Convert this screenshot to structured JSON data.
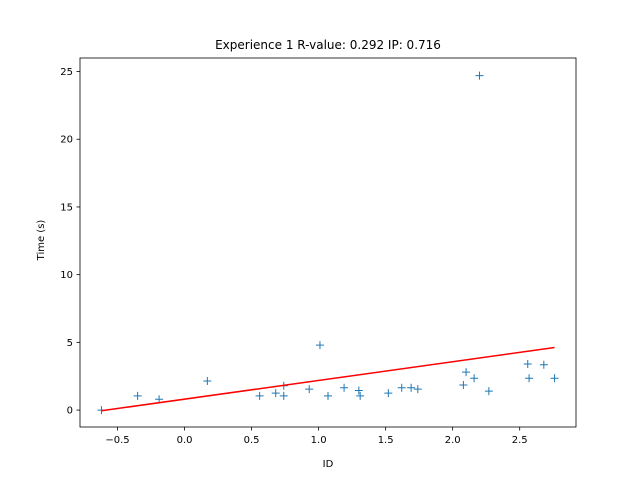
{
  "chart_data": {
    "type": "scatter",
    "title": "Experience 1 R-value: 0.292 IP: 0.716",
    "xlabel": "ID",
    "ylabel": "Time (s)",
    "xlim": [
      -0.78,
      2.92
    ],
    "ylim": [
      -1.25,
      26.0
    ],
    "xticks": [
      -0.5,
      0.0,
      0.5,
      1.0,
      1.5,
      2.0,
      2.5
    ],
    "xtick_labels": [
      "−0.5",
      "0.0",
      "0.5",
      "1.0",
      "1.5",
      "2.0",
      "2.5"
    ],
    "yticks": [
      0,
      5,
      10,
      15,
      20,
      25
    ],
    "ytick_labels": [
      "0",
      "5",
      "10",
      "15",
      "20",
      "25"
    ],
    "grid": false,
    "series": [
      {
        "kind": "points",
        "marker": "+",
        "color": "#1f77b4",
        "points": [
          {
            "x": -0.62,
            "y": 0.0
          },
          {
            "x": -0.35,
            "y": 1.05
          },
          {
            "x": -0.19,
            "y": 0.8
          },
          {
            "x": 0.17,
            "y": 2.15
          },
          {
            "x": 0.56,
            "y": 1.05
          },
          {
            "x": 0.68,
            "y": 1.25
          },
          {
            "x": 0.74,
            "y": 1.8
          },
          {
            "x": 0.74,
            "y": 1.05
          },
          {
            "x": 0.93,
            "y": 1.55
          },
          {
            "x": 1.01,
            "y": 4.8
          },
          {
            "x": 1.07,
            "y": 1.05
          },
          {
            "x": 1.19,
            "y": 1.65
          },
          {
            "x": 1.3,
            "y": 1.45
          },
          {
            "x": 1.31,
            "y": 1.05
          },
          {
            "x": 1.52,
            "y": 1.25
          },
          {
            "x": 1.62,
            "y": 1.65
          },
          {
            "x": 1.69,
            "y": 1.65
          },
          {
            "x": 1.74,
            "y": 1.55
          },
          {
            "x": 2.08,
            "y": 1.85
          },
          {
            "x": 2.1,
            "y": 2.8
          },
          {
            "x": 2.16,
            "y": 2.35
          },
          {
            "x": 2.2,
            "y": 24.7
          },
          {
            "x": 2.27,
            "y": 1.4
          },
          {
            "x": 2.56,
            "y": 3.4
          },
          {
            "x": 2.57,
            "y": 2.35
          },
          {
            "x": 2.68,
            "y": 3.35
          },
          {
            "x": 2.76,
            "y": 2.35
          }
        ]
      },
      {
        "kind": "line",
        "color": "#ff0000",
        "points": [
          {
            "x": -0.62,
            "y": -0.05
          },
          {
            "x": 2.76,
            "y": 4.62
          }
        ]
      }
    ]
  }
}
